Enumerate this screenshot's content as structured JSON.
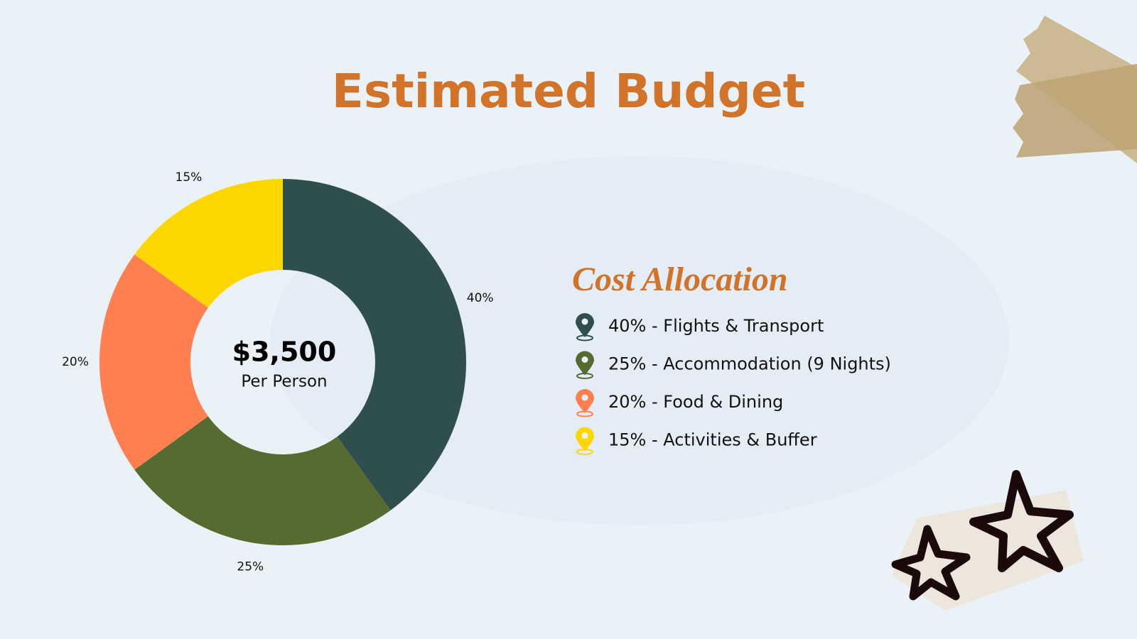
{
  "chart_data": {
    "type": "donut",
    "title": "Estimated Budget",
    "center_label": "$3,500",
    "center_sublabel": "Per Person",
    "legend_title": "Cost Allocation",
    "categories": [
      "40% - Flights & Transport",
      "25% - Accommodation (9 Nights)",
      "20% - Food & Dining",
      "15% - Activities & Buffer"
    ],
    "values": [
      40,
      25,
      20,
      15
    ],
    "value_labels": [
      "40%",
      "25%",
      "20%",
      "15%"
    ],
    "colors": [
      "#2f4f4f",
      "#556b2f",
      "#ff7f50",
      "#ffd700"
    ]
  }
}
